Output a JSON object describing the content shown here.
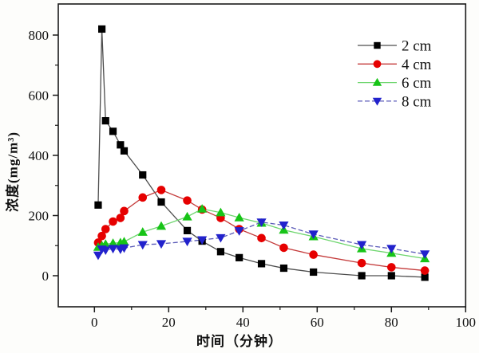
{
  "chart_data": {
    "type": "line",
    "title": "",
    "xlabel": "时间（分钟）",
    "ylabel": "浓度(mg/m³)",
    "xlim": [
      -10,
      100
    ],
    "ylim": [
      -100,
      900
    ],
    "x_ticks": [
      0,
      20,
      40,
      60,
      80,
      100
    ],
    "x_minor_ticks": [
      10,
      30,
      50,
      70,
      90
    ],
    "y_ticks": [
      0,
      200,
      400,
      600,
      800
    ],
    "y_minor_ticks": [
      100,
      300,
      500,
      700
    ],
    "grid": false,
    "legend_position": "top-right-inside",
    "x": [
      1,
      2,
      3,
      5,
      7,
      8,
      13,
      18,
      25,
      29,
      34,
      39,
      45,
      51,
      59,
      72,
      80,
      89
    ],
    "series": [
      {
        "name": "2 cm",
        "marker": "square",
        "marker_color": "#000000",
        "line_color": "#4d4d4d",
        "line_style": "solid",
        "values": [
          235,
          820,
          515,
          480,
          435,
          415,
          335,
          245,
          150,
          115,
          80,
          60,
          40,
          25,
          12,
          0,
          0,
          -5
        ]
      },
      {
        "name": "4 cm",
        "marker": "circle",
        "marker_color": "#e60000",
        "line_color": "#c43a3a",
        "line_style": "solid",
        "values": [
          110,
          132,
          155,
          180,
          192,
          215,
          260,
          285,
          250,
          220,
          192,
          155,
          125,
          93,
          70,
          42,
          28,
          17
        ]
      },
      {
        "name": "6 cm",
        "marker": "triangle-up",
        "marker_color": "#17c417",
        "line_color": "#6fd66f",
        "line_style": "solid",
        "values": [
          95,
          100,
          105,
          108,
          110,
          113,
          145,
          165,
          196,
          222,
          210,
          193,
          175,
          152,
          130,
          90,
          75,
          57
        ]
      },
      {
        "name": "8 cm",
        "marker": "triangle-down",
        "marker_color": "#2222cc",
        "line_color": "#5b5bb8",
        "line_style": "dashed",
        "values": [
          68,
          88,
          85,
          90,
          88,
          92,
          103,
          106,
          114,
          119,
          126,
          149,
          178,
          168,
          138,
          103,
          90,
          72
        ]
      }
    ]
  }
}
